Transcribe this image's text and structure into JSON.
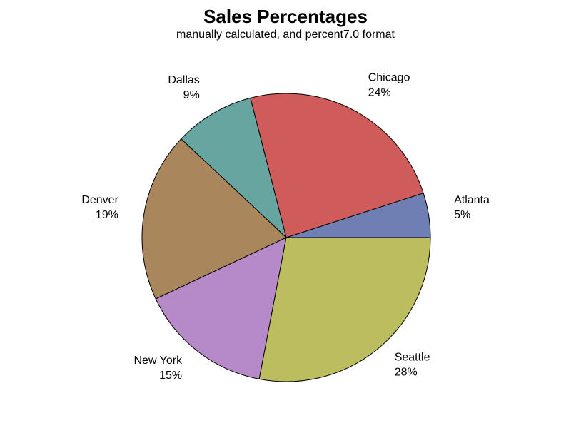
{
  "chart_data": {
    "type": "pie",
    "title": "Sales Percentages",
    "subtitle": "manually calculated, and percent7.0 format",
    "slices": [
      {
        "label": "Atlanta",
        "value": 5,
        "value_label": "5%",
        "color": "#6f7eb3"
      },
      {
        "label": "Chicago",
        "value": 24,
        "value_label": "24%",
        "color": "#d05b5b"
      },
      {
        "label": "Dallas",
        "value": 9,
        "value_label": "9%",
        "color": "#66a5a0"
      },
      {
        "label": "Denver",
        "value": 19,
        "value_label": "19%",
        "color": "#a9865b"
      },
      {
        "label": "New York",
        "value": 15,
        "value_label": "15%",
        "color": "#b689c9"
      },
      {
        "label": "Seattle",
        "value": 28,
        "value_label": "28%",
        "color": "#bcbd5e"
      }
    ],
    "start_angle_deg": 0,
    "direction": "counterclockwise",
    "outline_color": "#000000"
  }
}
